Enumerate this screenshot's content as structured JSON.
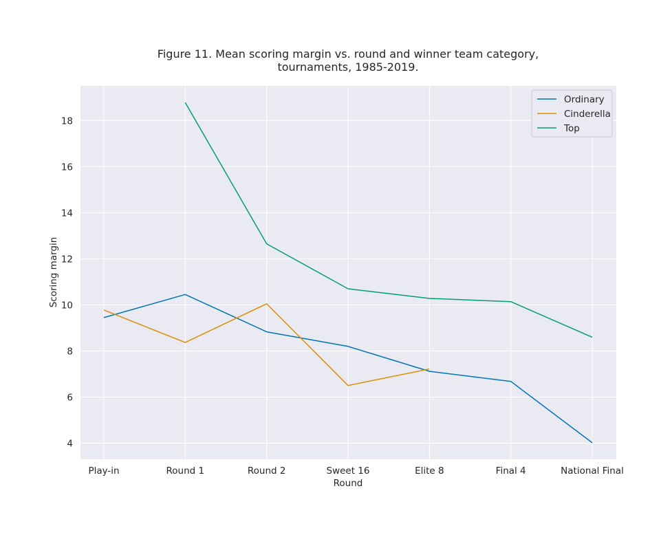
{
  "chart_data": {
    "type": "line",
    "title": "Figure 11. Mean scoring margin vs. round and winner team category,\ntournaments, 1985-2019.",
    "xlabel": "Round",
    "ylabel": "Scoring margin",
    "categories": [
      "Play-in",
      "Round 1",
      "Round 2",
      "Sweet 16",
      "Elite 8",
      "Final 4",
      "National Final"
    ],
    "ylim": [
      3.3,
      19.5
    ],
    "yticks": [
      4,
      6,
      8,
      10,
      12,
      14,
      16,
      18
    ],
    "grid": true,
    "legend_position": "top-right",
    "series": [
      {
        "name": "Ordinary",
        "color": "#0173b2",
        "values": [
          9.45,
          10.45,
          8.83,
          8.2,
          7.12,
          6.68,
          4.02
        ]
      },
      {
        "name": "Cinderella",
        "color": "#de8f05",
        "values": [
          9.78,
          8.37,
          10.05,
          6.5,
          7.22,
          null,
          null
        ]
      },
      {
        "name": "Top",
        "color": "#029e73",
        "values": [
          null,
          18.78,
          12.65,
          10.7,
          10.28,
          10.14,
          8.6
        ]
      }
    ]
  }
}
